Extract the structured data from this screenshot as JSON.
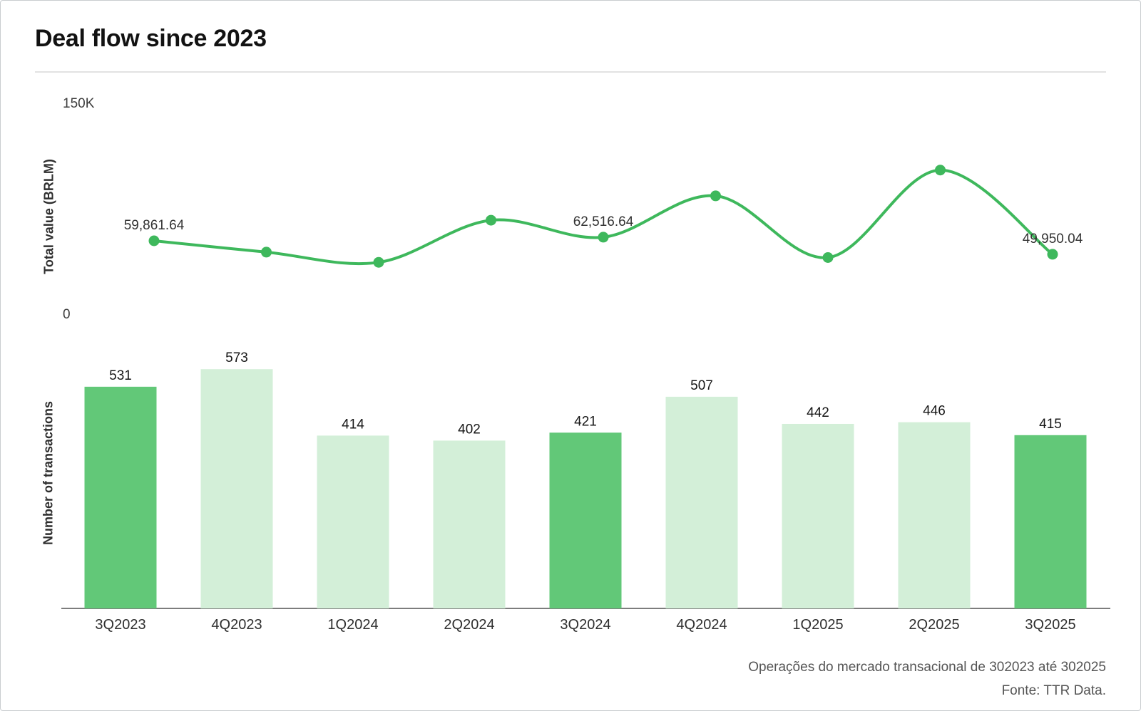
{
  "header": {
    "title": "Deal flow since 2023"
  },
  "colors": {
    "line": "#3eb85c",
    "point": "#3eb85c",
    "bar_light": "#d3efd8",
    "bar_dark": "#62c878",
    "axis_line": "#7d7d7d",
    "bar_value_label": "#161616",
    "category_label": "#2e2e2e",
    "point_label": "#333333",
    "tick_label": "#3d3d3d",
    "footer_text": "#555555",
    "divider": "#e2e2e2"
  },
  "chart_data": [
    {
      "type": "line",
      "name": "total-value-line",
      "ylabel": "Total value (BRLM)",
      "x": [
        "3Q2023",
        "4Q2023",
        "1Q2024",
        "2Q2024",
        "3Q2024",
        "4Q2024",
        "1Q2025",
        "2Q2025",
        "3Q2025"
      ],
      "values": [
        59861.64,
        51500,
        44000,
        75000,
        62516.64,
        93000,
        47500,
        112000,
        49950.04
      ],
      "point_labels": [
        "59,861.64",
        "",
        "",
        "",
        "62,516.64",
        "",
        "",
        "",
        "49,950.04"
      ],
      "labeled_points_note": "only first, 3Q2024 and last points carry data labels; other values estimated from pixel positions",
      "yticks": {
        "top": "150K",
        "bottom": "0"
      },
      "ylim": [
        0,
        150000
      ],
      "grid": false,
      "legend": "none",
      "smooth": true
    },
    {
      "type": "bar",
      "name": "transactions-bars",
      "ylabel": "Number of transactions",
      "categories": [
        "3Q2023",
        "4Q2023",
        "1Q2024",
        "2Q2024",
        "3Q2024",
        "4Q2024",
        "1Q2025",
        "2Q2025",
        "3Q2025"
      ],
      "values": [
        531,
        573,
        414,
        402,
        421,
        507,
        442,
        446,
        415
      ],
      "highlighted_categories": [
        "3Q2023",
        "3Q2024",
        "3Q2025"
      ],
      "grid": false,
      "legend": "none",
      "data_labels": true
    }
  ],
  "footer": {
    "line1": "Operações do mercado transacional de 302023 até 302025",
    "line2": "Fonte: TTR Data."
  }
}
